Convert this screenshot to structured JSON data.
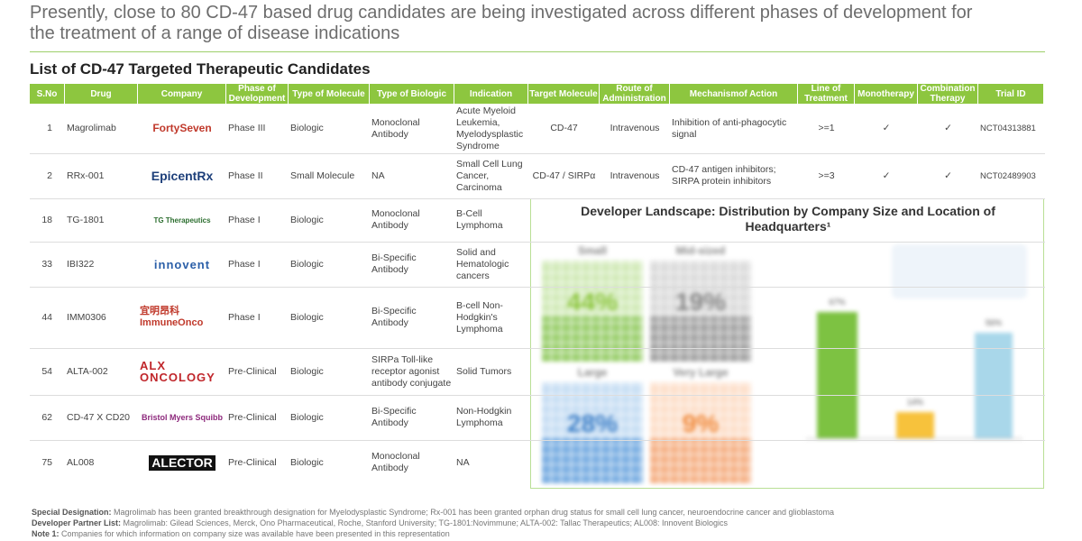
{
  "header": {
    "headline": "Presently, close to 80 CD-47 based drug candidates are being investigated across different phases of development for the treatment of a range of disease indications",
    "title": "List of CD-47 Targeted Therapeutic Candidates"
  },
  "table": {
    "columns": [
      "S.No",
      "Drug",
      "Company",
      "Phase of Development",
      "Type of Molecule",
      "Type of Biologic",
      "Indication",
      "Target Molecule",
      "Route of Administration",
      "Mechanismof Action",
      "Line of Treatment",
      "Monotherapy",
      "Combination Therapy",
      "Trial ID"
    ],
    "rows": [
      [
        "1",
        "Magrolimab",
        "FortySeven",
        "Phase III",
        "Biologic",
        "Monoclonal Antibody",
        "Acute Myeloid Leukemia, Myelodysplastic Syndrome",
        "CD-47",
        "Intravenous",
        "Inhibition of anti-phagocytic signal",
        ">=1",
        "✓",
        "✓",
        "NCT04313881"
      ],
      [
        "2",
        "RRx-001",
        "EpicentRx",
        "Phase II",
        "Small Molecule",
        "NA",
        "Small Cell Lung Cancer, Carcinoma",
        "CD-47 / SIRPα",
        "Intravenous",
        "CD-47 antigen inhibitors; SIRPA protein inhibitors",
        ">=3",
        "✓",
        "✓",
        "NCT02489903"
      ],
      [
        "18",
        "TG-1801",
        "TG Therapeutics",
        "Phase I",
        "Biologic",
        "Monoclonal Antibody",
        "B-Cell Lymphoma"
      ],
      [
        "33",
        "IBI322",
        "innovent",
        "Phase I",
        "Biologic",
        "Bi-Specific Antibody",
        "Solid and Hematologic cancers"
      ],
      [
        "44",
        "IMM0306",
        "宜明昂科 ImmuneOnco",
        "Phase I",
        "Biologic",
        "Bi-Specific Antibody",
        "B-cell Non-Hodgkin's Lymphoma"
      ],
      [
        "54",
        "ALTA-002",
        "ALX ONCOLOGY",
        "Pre-Clinical",
        "Biologic",
        "SIRPa Toll-like receptor agonist antibody conjugate",
        "Solid Tumors"
      ],
      [
        "62",
        "CD-47 X CD20",
        "Bristol Myers Squibb",
        "Pre-Clinical",
        "Biologic",
        "Bi-Specific Antibody",
        "Non-Hodgkin Lymphoma"
      ],
      [
        "75",
        "AL008",
        "ALECTOR",
        "Pre-Clinical",
        "Biologic",
        "Monoclonal Antibody",
        "NA"
      ]
    ]
  },
  "panel": {
    "title": "Developer Landscape: Distribution by Company Size and Location of Headquarters¹",
    "sizes": [
      {
        "label": "Small",
        "value": "44%"
      },
      {
        "label": "Mid-sized",
        "value": "19%"
      },
      {
        "label": "Large",
        "value": "28%"
      },
      {
        "label": "Very Large",
        "value": "9%"
      }
    ],
    "regions": [
      {
        "color": "#7dc242",
        "value": 67,
        "value_label": "67%"
      },
      {
        "color": "#f7c23c",
        "value": 14,
        "value_label": "14%"
      },
      {
        "color": "#a9d7ea",
        "value": 56,
        "value_label": "56%"
      }
    ]
  },
  "notes": [
    {
      "label": "Special Designation:",
      "text": " Magrolimab has been granted breakthrough designation for Myelodysplastic Syndrome; Rx-001 has been granted orphan drug status for small cell lung cancer, neuroendocrine cancer and glioblastoma"
    },
    {
      "label": "Developer Partner List:",
      "text": " Magrolimab: Gilead Sciences, Merck, Ono Pharmaceutical, Roche, Stanford University; TG-1801:Novimmune; ALTA-002: Tallac Therapeutics; AL008: Innovent Biologics"
    },
    {
      "label": "Note 1:",
      "text": " Companies for which information on company size was available have been presented in this representation"
    }
  ]
}
